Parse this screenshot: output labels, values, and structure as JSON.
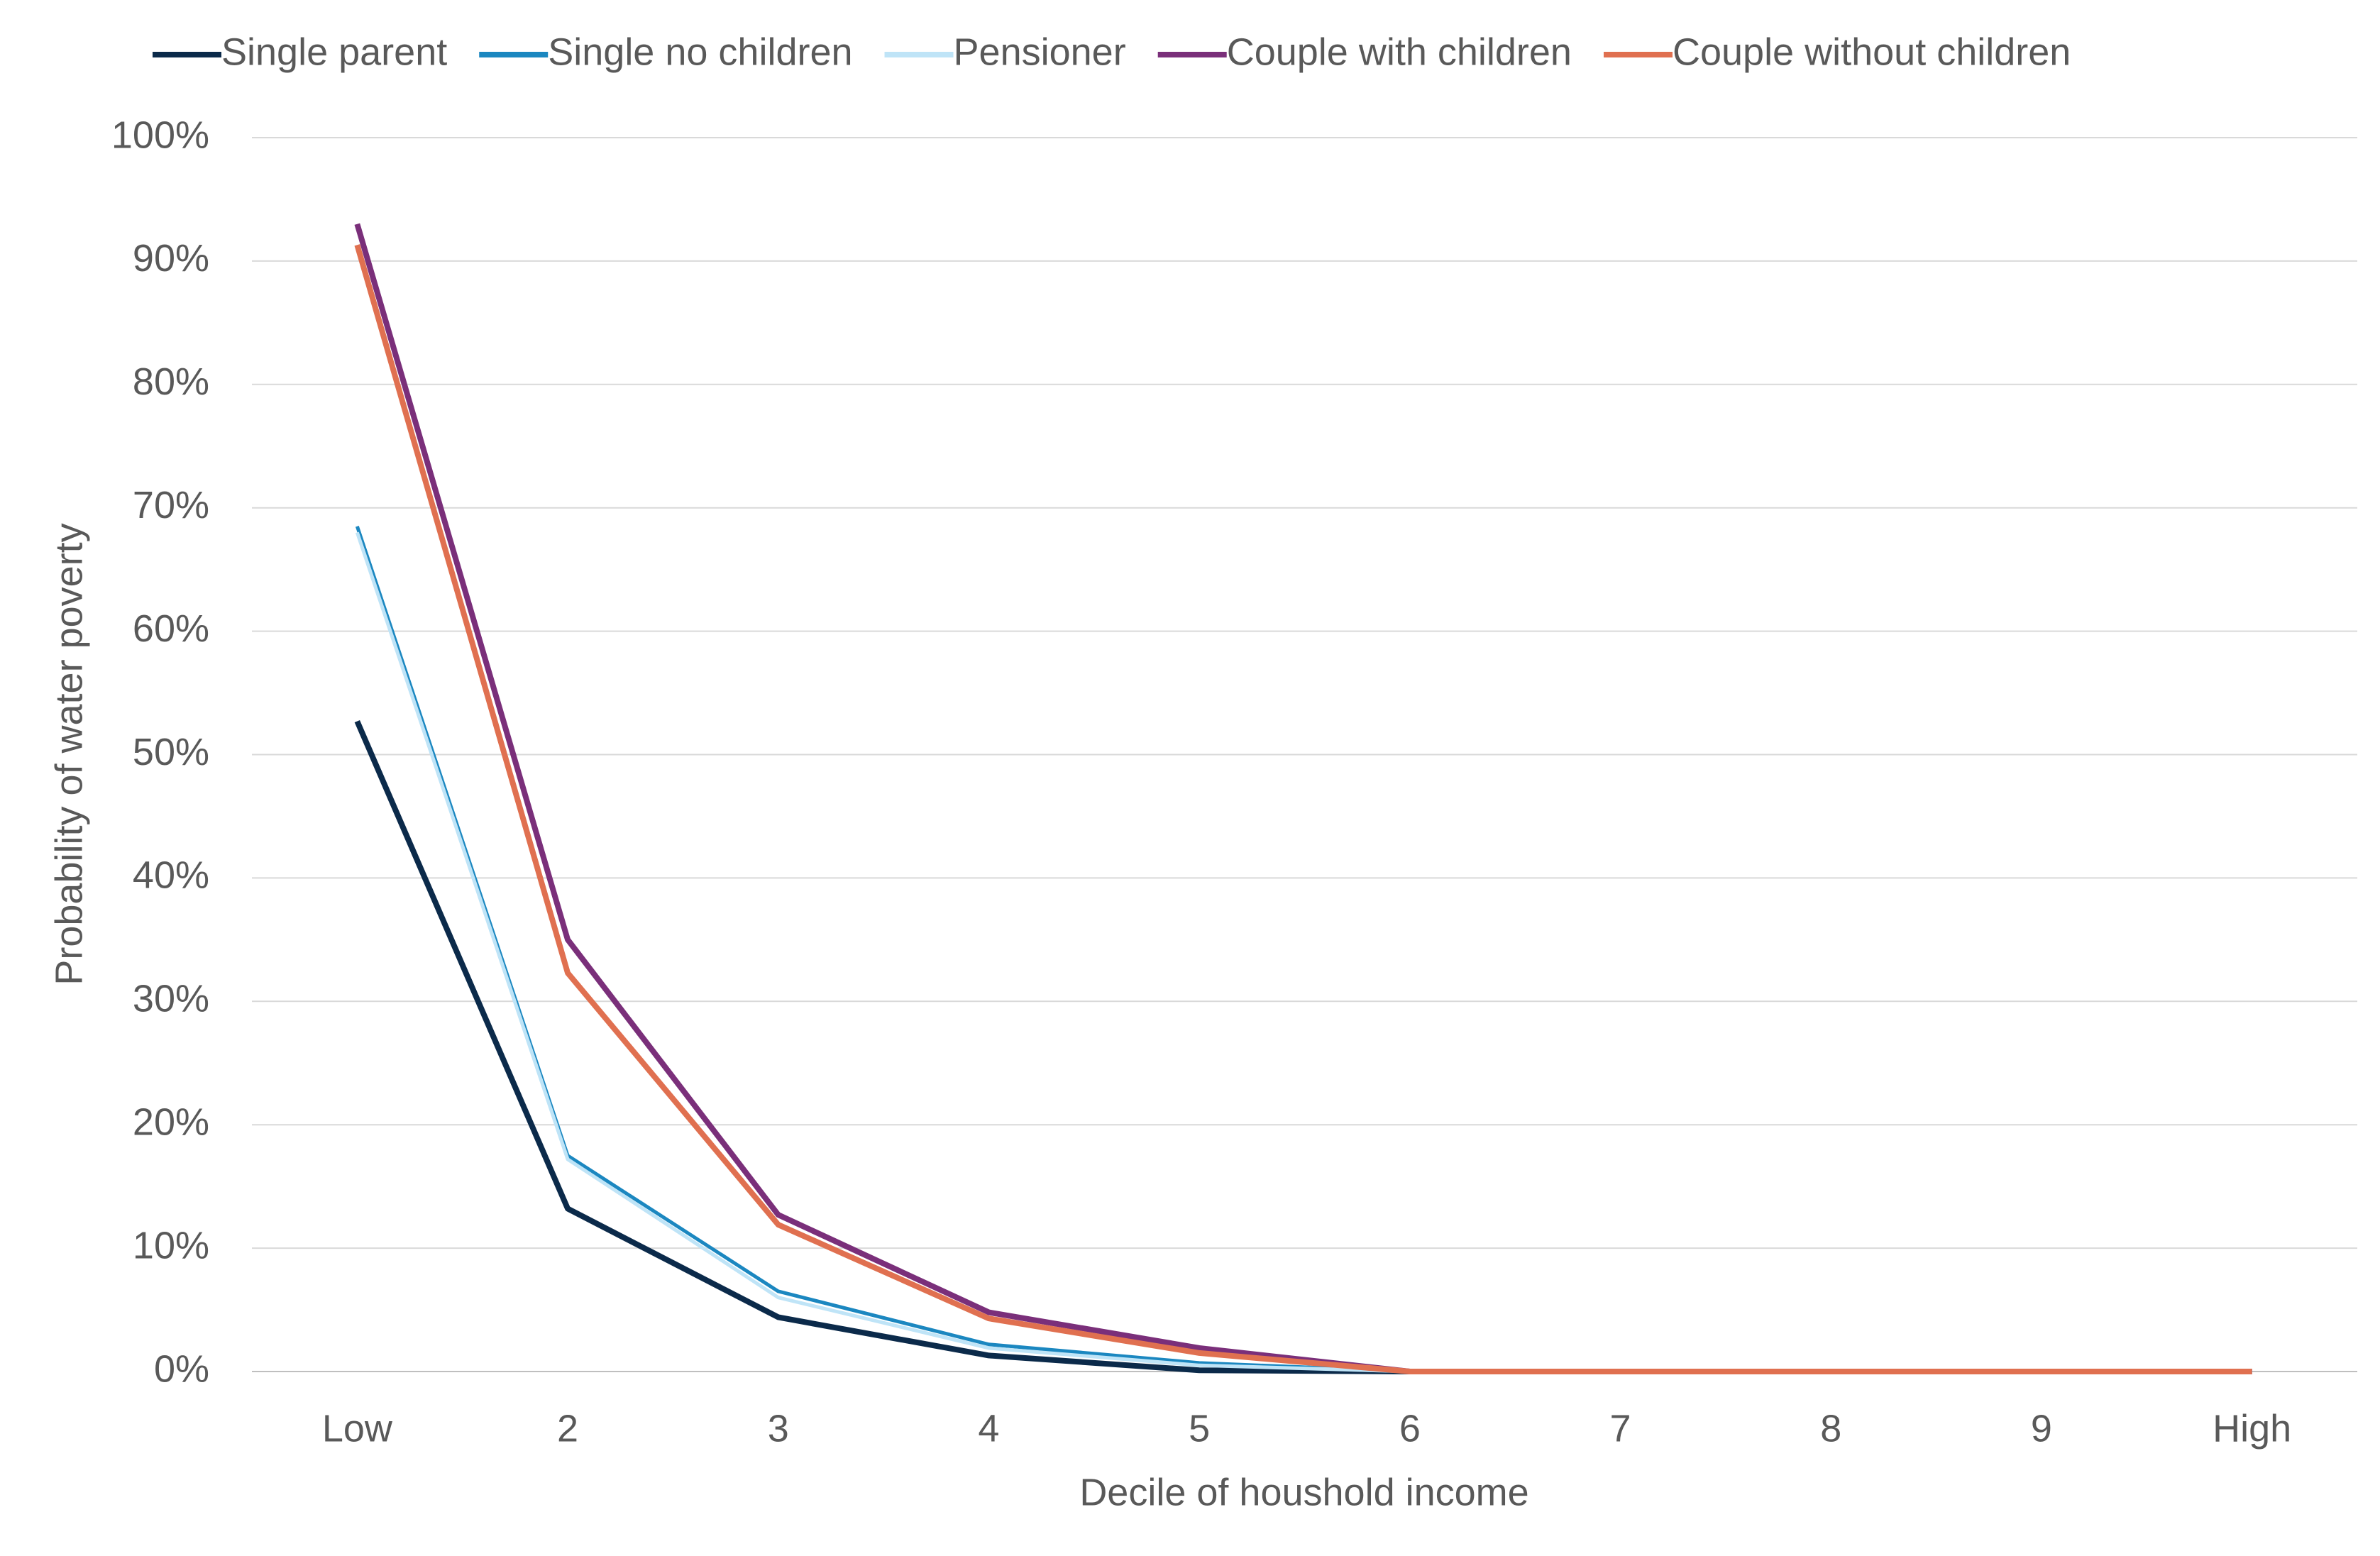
{
  "chart_data": {
    "type": "line",
    "x_label": "Decile of houshold income",
    "y_label": "Probability of water poverty",
    "categories": [
      "Low",
      "2",
      "3",
      "4",
      "5",
      "6",
      "7",
      "8",
      "9",
      "High"
    ],
    "series": [
      {
        "name": "Single parent",
        "color": "#0b2a4a",
        "values": [
          52.7,
          13.2,
          4.4,
          1.3,
          0.1,
          0,
          0,
          0,
          0,
          0
        ]
      },
      {
        "name": "Single no children",
        "color": "#1b87c0",
        "values": [
          68.5,
          17.5,
          6.5,
          2.2,
          0.7,
          0,
          0,
          0,
          0,
          0
        ]
      },
      {
        "name": "Pensioner",
        "color": "#bfe4f7",
        "values": [
          68,
          17.2,
          6,
          1.9,
          0.5,
          0,
          0,
          0,
          0,
          0
        ]
      },
      {
        "name": "Couple with children",
        "color": "#7a2f7a",
        "values": [
          93,
          35,
          12.7,
          4.8,
          1.9,
          0,
          0,
          0,
          0,
          0
        ]
      },
      {
        "name": "Couple without children",
        "color": "#e07050",
        "values": [
          91.3,
          32.3,
          11.9,
          4.3,
          1.5,
          0,
          0,
          0,
          0,
          0
        ]
      }
    ],
    "ylim": [
      0,
      100
    ],
    "yticks": [
      {
        "value": 0,
        "label": "0%"
      },
      {
        "value": 10,
        "label": "10%"
      },
      {
        "value": 20,
        "label": "20%"
      },
      {
        "value": 30,
        "label": "30%"
      },
      {
        "value": 40,
        "label": "40%"
      },
      {
        "value": 50,
        "label": "50%"
      },
      {
        "value": 60,
        "label": "60%"
      },
      {
        "value": 70,
        "label": "70%"
      },
      {
        "value": 80,
        "label": "80%"
      },
      {
        "value": 90,
        "label": "90%"
      },
      {
        "value": 100,
        "label": "100%"
      }
    ],
    "grid": true,
    "legend": "top"
  }
}
